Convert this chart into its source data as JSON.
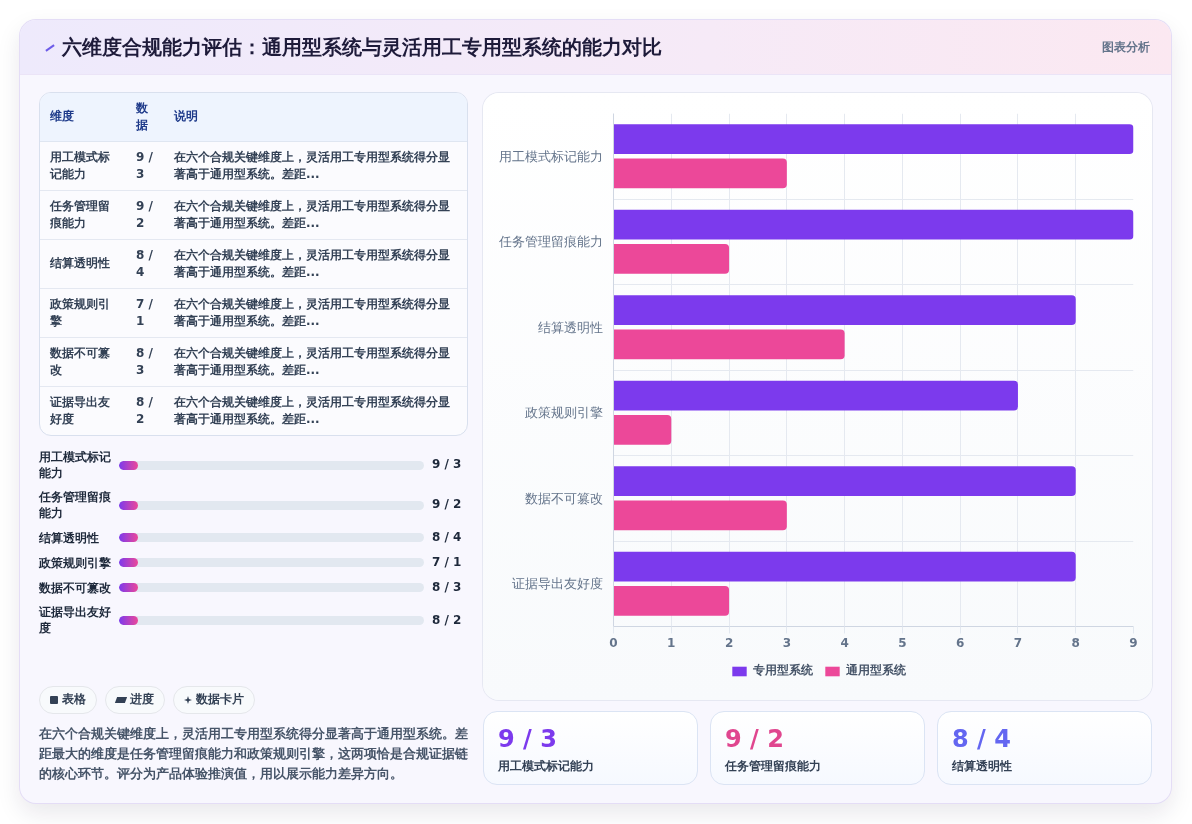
{
  "chart_data": [
    {
      "type": "other",
      "title": "六维度合规能力评估：通用型系统与灵活用工专用型系统的能力对比",
      "annotations": [
        "图表分析"
      ]
    },
    {
      "type": "other",
      "categories": [
        "维度",
        "数据",
        "说明"
      ],
      "cell_labels": [
        [
          "用工模式标记能力",
          "9 / 3",
          "在六个合规关键维度上，灵活用工专用型系统得分显著高于通用型系统。差距..."
        ],
        [
          "任务管理留痕能力",
          "9 / 2",
          "在六个合规关键维度上，灵活用工专用型系统得分显著高于通用型系统。差距..."
        ],
        [
          "结算透明性",
          "8 / 4",
          "在六个合规关键维度上，灵活用工专用型系统得分显著高于通用型系统。差距..."
        ],
        [
          "政策规则引擎",
          "7 / 1",
          "在六个合规关键维度上，灵活用工专用型系统得分显著高于通用型系统。差距..."
        ],
        [
          "数据不可篡改",
          "8 / 3",
          "在六个合规关键维度上，灵活用工专用型系统得分显著高于通用型系统。差距..."
        ],
        [
          "证据导出友好度",
          "8 / 2",
          "在六个合规关键维度上，灵活用工专用型系统得分显著高于通用型系统。差距..."
        ]
      ]
    },
    {
      "type": "other",
      "categories": [
        "用工模式标记能力",
        "任务管理留痕能力",
        "结算透明性",
        "政策规则引擎",
        "数据不可篡改",
        "证据导出友好度"
      ],
      "value_labels": [
        "9 / 3",
        "9 / 2",
        "8 / 4",
        "7 / 1",
        "8 / 3",
        "8 / 2"
      ]
    },
    {
      "type": "other",
      "categories": [
        "表格",
        "进度",
        "数据卡片"
      ],
      "annotations": [
        "在六个合规关键维度上，灵活用工专用型系统得分显著高于通用型系统。差距最大的维度是任务管理留痕能力和政策规则引擎，这两项恰是合规证据链的核心环节。评分为产品体验推演值，用以展示能力差异方向。"
      ]
    },
    {
      "type": "bar",
      "orientation": "horizontal",
      "categories": [
        "用工模式标记能力",
        "任务管理留痕能力",
        "结算透明性",
        "政策规则引擎",
        "数据不可篡改",
        "证据导出友好度"
      ],
      "series": [
        {
          "name": "专用型系统",
          "color": "#7c3aed",
          "values": [
            9,
            9,
            8,
            7,
            8,
            8
          ]
        },
        {
          "name": "通用型系统",
          "color": "#ec4899",
          "values": [
            3,
            2,
            4,
            1,
            3,
            2
          ]
        }
      ],
      "xlim": [
        0,
        9
      ],
      "xticks": [
        0,
        1,
        2,
        3,
        4,
        5,
        6,
        7,
        8,
        9
      ],
      "grid": true,
      "legend": "bottom"
    },
    {
      "type": "other",
      "categories": [
        "用工模式标记能力",
        "任务管理留痕能力",
        "结算透明性"
      ],
      "value_labels": [
        "9 / 3",
        "9 / 2",
        "8 / 4"
      ]
    }
  ]
}
